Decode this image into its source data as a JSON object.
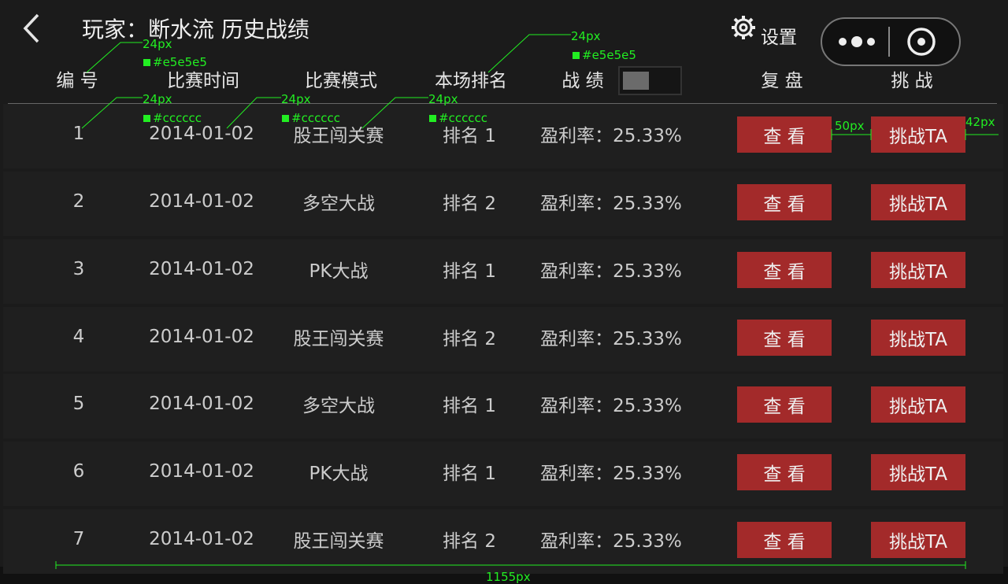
{
  "header": {
    "title": "玩家：断水流  历史战绩",
    "settings_label": "设置"
  },
  "table": {
    "columns": [
      "编 号",
      "比赛时间",
      "比赛模式",
      "本场排名",
      "战 绩",
      "复 盘",
      "挑 战"
    ],
    "rows": [
      [
        "1",
        "2014-01-02",
        "股王闯关赛",
        "排名 1",
        "盈利率：25.33%",
        "查 看",
        "挑战TA"
      ],
      [
        "2",
        "2014-01-02",
        "多空大战",
        "排名 2",
        "盈利率：25.33%",
        "查 看",
        "挑战TA"
      ],
      [
        "3",
        "2014-01-02",
        "PK大战",
        "排名 1",
        "盈利率：25.33%",
        "查 看",
        "挑战TA"
      ],
      [
        "4",
        "2014-01-02",
        "股王闯关赛",
        "排名 2",
        "盈利率：25.33%",
        "查 看",
        "挑战TA"
      ],
      [
        "5",
        "2014-01-02",
        "多空大战",
        "排名 1",
        "盈利率：25.33%",
        "查 看",
        "挑战TA"
      ],
      [
        "6",
        "2014-01-02",
        "PK大战",
        "排名 1",
        "盈利率：25.33%",
        "查 看",
        "挑战TA"
      ],
      [
        "7",
        "2014-01-02",
        "股王闯关赛",
        "排名 2",
        "盈利率：25.33%",
        "查 看",
        "挑战TA"
      ]
    ]
  },
  "annotations": [
    "24px",
    "#e5e5e5",
    "24px",
    "#cccccc",
    "24px",
    "#cccccc",
    "24px",
    "#cccccc",
    "24px",
    "#e5e5e5",
    "50px",
    "42px",
    "1155px"
  ]
}
